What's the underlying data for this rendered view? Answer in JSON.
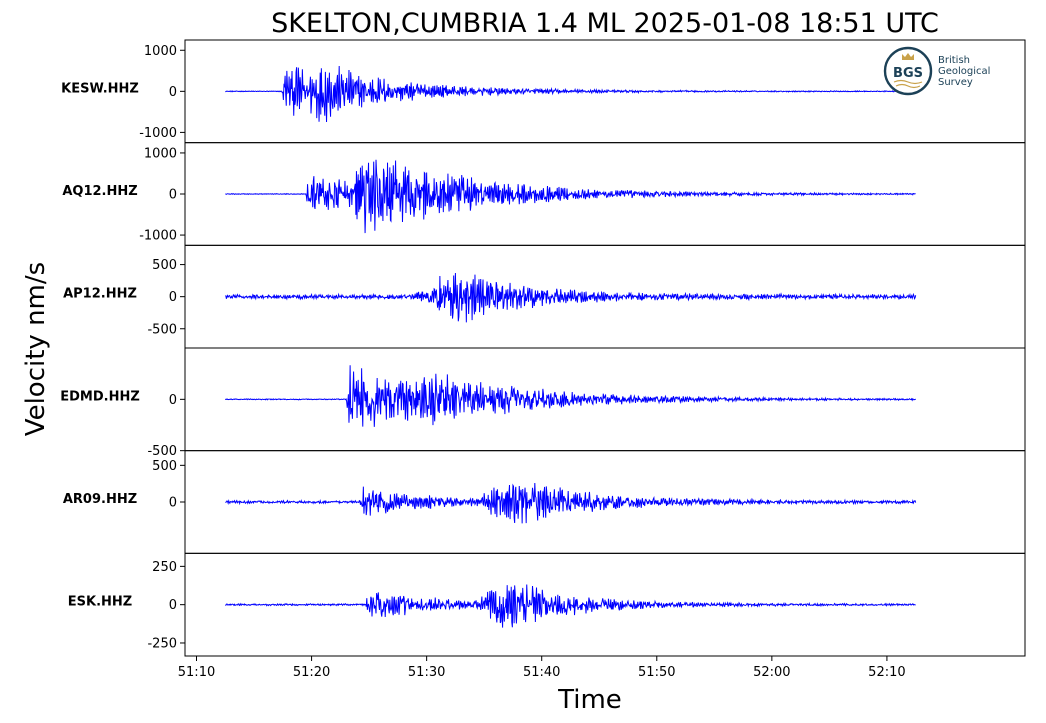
{
  "chart_data": {
    "type": "line",
    "title": "SKELTON,CUMBRIA 1.4 ML   2025-01-08 18:51 UTC",
    "xlabel": "Time",
    "ylabel": "Velocity nm/s",
    "x_ticks": [
      "51:10",
      "51:20",
      "51:30",
      "51:40",
      "51:50",
      "52:00",
      "52:10"
    ],
    "xlim_seconds": [
      -1,
      72
    ],
    "trace_start_seconds": 2.5,
    "trace_end_seconds": 62.5,
    "line_color": "#0000ff",
    "legend": "none",
    "grid": false,
    "series": [
      {
        "name": "KESW.HHZ",
        "ylim": [
          -1250,
          1250
        ],
        "y_ticks": [
          1000,
          0,
          -1000
        ],
        "y_tick_labels": [
          "1000",
          "0",
          "-1000"
        ],
        "noise": 12,
        "arrivals": [
          {
            "t": 7.4,
            "amp": 1050,
            "rise": 0.3,
            "decay": 3.5
          },
          {
            "t": 9.5,
            "amp": 600,
            "rise": 1.2,
            "decay": 9.0
          }
        ]
      },
      {
        "name": "AQ12.HHZ",
        "ylim": [
          -1250,
          1250
        ],
        "y_ticks": [
          1000,
          0,
          -1000
        ],
        "y_tick_labels": [
          "1000",
          "0",
          "-1000"
        ],
        "noise": 12,
        "arrivals": [
          {
            "t": 9.5,
            "amp": 650,
            "rise": 0.3,
            "decay": 7.0
          },
          {
            "t": 13.6,
            "amp": 1050,
            "rise": 0.3,
            "decay": 10.0
          }
        ]
      },
      {
        "name": "AP12.HHZ",
        "ylim": [
          -800,
          800
        ],
        "y_ticks": [
          500,
          0,
          -500
        ],
        "y_tick_labels": [
          "500",
          "0",
          "-500"
        ],
        "noise": 40,
        "arrivals": [
          {
            "t": 18.0,
            "amp": 150,
            "rise": 3.0,
            "decay": 10.0
          },
          {
            "t": 20.5,
            "amp": 620,
            "rise": 1.2,
            "decay": 5.0
          }
        ]
      },
      {
        "name": "EDMD.HHZ",
        "ylim": [
          -500,
          500
        ],
        "y_ticks": [
          0,
          -500
        ],
        "y_tick_labels": [
          "0",
          "-500"
        ],
        "noise": 6,
        "arrivals": [
          {
            "t": 13.0,
            "amp": 420,
            "rise": 0.3,
            "decay": 8.0
          },
          {
            "t": 18.0,
            "amp": 220,
            "rise": 3.0,
            "decay": 10.0
          }
        ]
      },
      {
        "name": "AR09.HHZ",
        "ylim": [
          -700,
          700
        ],
        "y_ticks": [
          500,
          0
        ],
        "y_tick_labels": [
          "500",
          "0"
        ],
        "noise": 22,
        "arrivals": [
          {
            "t": 14.2,
            "amp": 240,
            "rise": 0.3,
            "decay": 6.0
          },
          {
            "t": 24.5,
            "amp": 520,
            "rise": 3.0,
            "decay": 7.0
          }
        ]
      },
      {
        "name": "ESK.HHZ",
        "ylim": [
          -335,
          335
        ],
        "y_ticks": [
          250,
          0,
          -250
        ],
        "y_tick_labels": [
          "250",
          "0",
          "-250"
        ],
        "noise": 7,
        "arrivals": [
          {
            "t": 14.7,
            "amp": 130,
            "rise": 0.3,
            "decay": 6.0
          },
          {
            "t": 24.5,
            "amp": 270,
            "rise": 2.5,
            "decay": 6.0
          }
        ]
      }
    ]
  },
  "logo": {
    "monogram": "BGS",
    "line1": "British",
    "line2": "Geological",
    "line3": "Survey",
    "ring_color": "#1c4157",
    "text_color": "#1c4157",
    "accent_color": "#c9a24a"
  }
}
